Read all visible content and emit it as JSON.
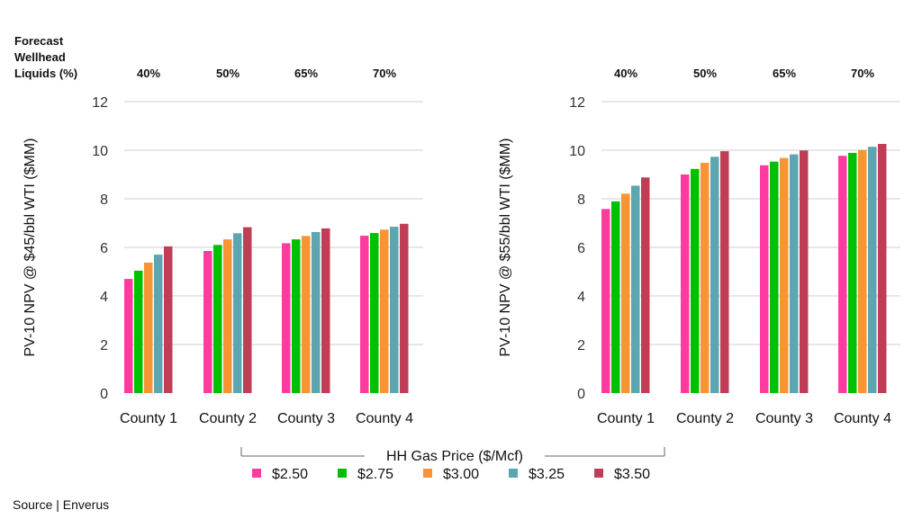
{
  "header_label": [
    "Forecast",
    "Wellhead",
    "Liquids (%)"
  ],
  "source": "Source | Enverus",
  "legend_title": "HH Gas Price ($/Mcf)",
  "chart_data": [
    {
      "type": "bar",
      "ylabel": "PV-10 NPV @ $45/bbl WTI ($MM)",
      "ylim": [
        0,
        12
      ],
      "yticks": [
        0,
        2,
        4,
        6,
        8,
        10,
        12
      ],
      "grid": true,
      "categories": [
        "County 1",
        "County 2",
        "County 3",
        "County 4"
      ],
      "top_labels": [
        "40%",
        "50%",
        "65%",
        "70%"
      ],
      "series": [
        {
          "name": "$2.50",
          "color": "#ff3ba0",
          "values": [
            4.7,
            5.85,
            6.17,
            6.48
          ]
        },
        {
          "name": "$2.75",
          "color": "#00c000",
          "values": [
            5.04,
            6.1,
            6.33,
            6.59
          ]
        },
        {
          "name": "$3.00",
          "color": "#f79433",
          "values": [
            5.37,
            6.33,
            6.47,
            6.73
          ]
        },
        {
          "name": "$3.25",
          "color": "#5ba6b0",
          "values": [
            5.7,
            6.58,
            6.63,
            6.85
          ]
        },
        {
          "name": "$3.50",
          "color": "#c03e55",
          "values": [
            6.04,
            6.83,
            6.78,
            6.97
          ]
        }
      ]
    },
    {
      "type": "bar",
      "ylabel": "PV-10 NPV @ $55/bbl WTI ($MM)",
      "ylim": [
        0,
        12
      ],
      "yticks": [
        0,
        2,
        4,
        6,
        8,
        10,
        12
      ],
      "grid": true,
      "categories": [
        "County 1",
        "County 2",
        "County 3",
        "County 4"
      ],
      "top_labels": [
        "40%",
        "50%",
        "65%",
        "70%"
      ],
      "series": [
        {
          "name": "$2.50",
          "color": "#ff3ba0",
          "values": [
            7.58,
            9.0,
            9.38,
            9.77
          ]
        },
        {
          "name": "$2.75",
          "color": "#00c000",
          "values": [
            7.89,
            9.23,
            9.53,
            9.89
          ]
        },
        {
          "name": "$3.00",
          "color": "#f79433",
          "values": [
            8.21,
            9.48,
            9.68,
            10.01
          ]
        },
        {
          "name": "$3.25",
          "color": "#5ba6b0",
          "values": [
            8.54,
            9.73,
            9.83,
            10.14
          ]
        },
        {
          "name": "$3.50",
          "color": "#c03e55",
          "values": [
            8.88,
            9.96,
            9.99,
            10.26
          ]
        }
      ]
    }
  ]
}
